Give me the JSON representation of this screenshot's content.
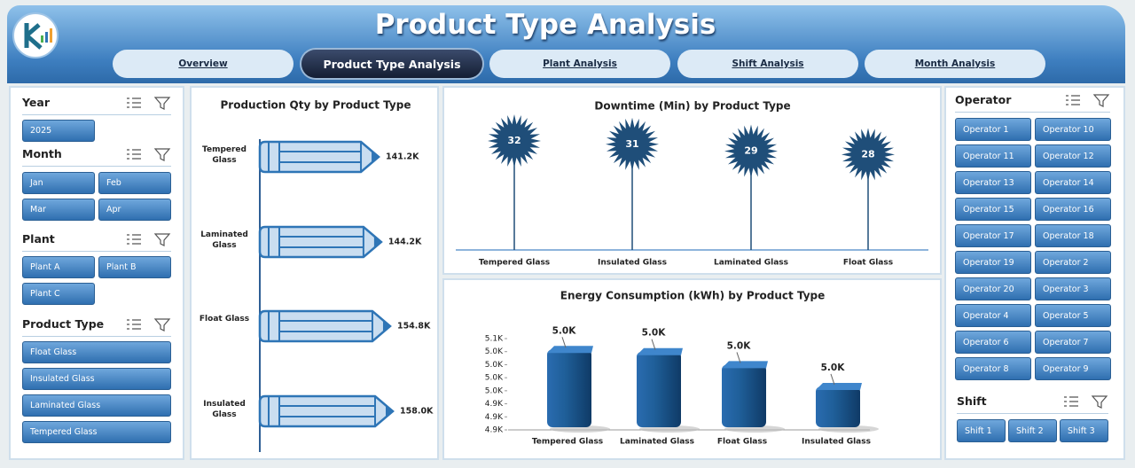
{
  "header": {
    "title": "Product Type Analysis"
  },
  "nav": [
    "Overview",
    "Product Type Analysis",
    "Plant Analysis",
    "Shift Analysis",
    "Month Analysis"
  ],
  "active_tab": 1,
  "slicers": [
    {
      "title": "Year",
      "items": [
        "2025"
      ]
    },
    {
      "title": "Month",
      "items": [
        "Jan",
        "Feb",
        "Mar",
        "Apr"
      ]
    },
    {
      "title": "Plant",
      "items": [
        "Plant A",
        "Plant B",
        "Plant C"
      ]
    },
    {
      "title": "Product Type",
      "items": [
        "Float Glass",
        "Insulated Glass",
        "Laminated Glass",
        "Tempered Glass"
      ]
    },
    {
      "title": "Operator",
      "items": [
        "Operator 1",
        "Operator 10",
        "Operator 11",
        "Operator 12",
        "Operator 13",
        "Operator 14",
        "Operator 15",
        "Operator 16",
        "Operator 17",
        "Operator 18",
        "Operator 19",
        "Operator 2",
        "Operator 20",
        "Operator 3",
        "Operator 4",
        "Operator 5",
        "Operator 6",
        "Operator 7",
        "Operator 8",
        "Operator 9"
      ]
    },
    {
      "title": "Shift",
      "items": [
        "Shift 1",
        "Shift 2",
        "Shift 3"
      ]
    }
  ],
  "chart_data": [
    {
      "type": "pencil-bar",
      "title": "Production Qty by Product Type",
      "categories": [
        "Tempered Glass",
        "Laminated Glass",
        "Float Glass",
        "Insulated Glass"
      ],
      "values": [
        141200,
        144200,
        154800,
        158000
      ],
      "value_labels": [
        "141.2K",
        "144.2K",
        "154.8K",
        "158.0K"
      ],
      "color": "#2e75b6"
    },
    {
      "type": "lollipop",
      "title": "Downtime (Min) by Product Type",
      "categories": [
        "Tempered Glass",
        "Insulated Glass",
        "Laminated Glass",
        "Float Glass"
      ],
      "values": [
        32,
        31,
        29,
        28
      ],
      "color": "#1f4e79"
    },
    {
      "type": "bar",
      "title": "Energy Consumption (kWh) by Product Type",
      "categories": [
        "Tempered Glass",
        "Laminated Glass",
        "Float Glass",
        "Insulated Glass"
      ],
      "values": [
        5045,
        5040,
        5010,
        4960
      ],
      "value_labels": [
        "5.0K",
        "5.0K",
        "5.0K",
        "5.0K"
      ],
      "ylim": [
        4860,
        5070
      ],
      "yticks": [
        {
          "value": 4860,
          "label": "4.9K"
        },
        {
          "value": 4890,
          "label": "4.9K"
        },
        {
          "value": 4920,
          "label": "4.9K"
        },
        {
          "value": 4950,
          "label": "5.0K"
        },
        {
          "value": 4980,
          "label": "5.0K"
        },
        {
          "value": 5010,
          "label": "5.0K"
        },
        {
          "value": 5040,
          "label": "5.0K"
        },
        {
          "value": 5070,
          "label": "5.1K"
        }
      ],
      "color": "#1f5f99"
    }
  ]
}
